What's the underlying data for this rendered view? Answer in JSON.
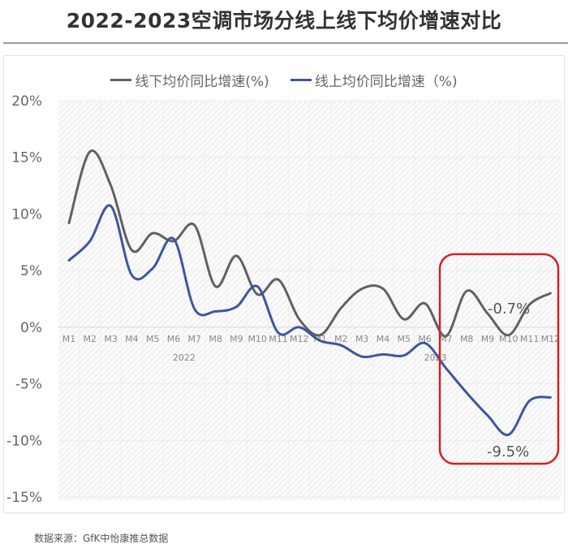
{
  "title": "2022-2023空调市场分线上线下均价增速对比",
  "source": "数据来源：GfK中怡康推总数据",
  "legend": [
    {
      "label": "线下均价同比增速(%)",
      "color": "#5f6163"
    },
    {
      "label": "线上均价同比增速（%)",
      "color": "#3d56a0"
    }
  ],
  "annotations": {
    "offline_low": "-0.7%",
    "online_low": "-9.5%"
  },
  "highlight_color": "#d62027",
  "chart_data": {
    "type": "line",
    "title": "2022-2023空调市场分线上线下均价增速对比",
    "xlabel": "",
    "ylabel": "",
    "ylim": [
      -15,
      20
    ],
    "yticks": [
      "20%",
      "15%",
      "10%",
      "5%",
      "0%",
      "-5%",
      "-10%",
      "-15%"
    ],
    "year_groups": [
      {
        "label": "2022",
        "months": [
          "M1",
          "M2",
          "M3",
          "M4",
          "M5",
          "M6",
          "M7",
          "M8",
          "M9",
          "M10",
          "M11",
          "M12"
        ]
      },
      {
        "label": "2023",
        "months": [
          "M1",
          "M2",
          "M3",
          "M4",
          "M5",
          "M6",
          "M7",
          "M8",
          "M9",
          "M10",
          "M11",
          "M12"
        ]
      }
    ],
    "categories": [
      "2022-M1",
      "2022-M2",
      "2022-M3",
      "2022-M4",
      "2022-M5",
      "2022-M6",
      "2022-M7",
      "2022-M8",
      "2022-M9",
      "2022-M10",
      "2022-M11",
      "2022-M12",
      "2023-M1",
      "2023-M2",
      "2023-M3",
      "2023-M4",
      "2023-M5",
      "2023-M6",
      "2023-M7",
      "2023-M8",
      "2023-M9",
      "2023-M10",
      "2023-M11",
      "2023-M12"
    ],
    "series": [
      {
        "name": "线下均价同比增速(%)",
        "color": "#5f6163",
        "values": [
          9.2,
          15.5,
          12.5,
          6.8,
          8.3,
          7.6,
          9.0,
          3.6,
          6.3,
          2.9,
          4.2,
          0.7,
          -0.7,
          1.7,
          3.4,
          3.4,
          0.7,
          2.1,
          -0.8,
          3.2,
          1.2,
          -0.7,
          2.0,
          3.0
        ]
      },
      {
        "name": "线上均价同比增速（%)",
        "color": "#3d56a0",
        "values": [
          5.9,
          7.6,
          10.7,
          4.6,
          5.2,
          7.8,
          1.6,
          1.4,
          1.8,
          3.6,
          -0.5,
          0.0,
          -1.2,
          -1.6,
          -2.6,
          -2.4,
          -2.5,
          -1.4,
          -3.6,
          -5.8,
          -7.8,
          -9.5,
          -6.5,
          -6.2
        ]
      }
    ],
    "annotations": [
      {
        "text": "-0.7%",
        "series": 0,
        "category": "2023-M10"
      },
      {
        "text": "-9.5%",
        "series": 1,
        "category": "2023-M10"
      }
    ],
    "highlight_box": {
      "from": "2023-M7",
      "to": "2023-M12"
    },
    "grid": true,
    "legend_position": "top"
  }
}
